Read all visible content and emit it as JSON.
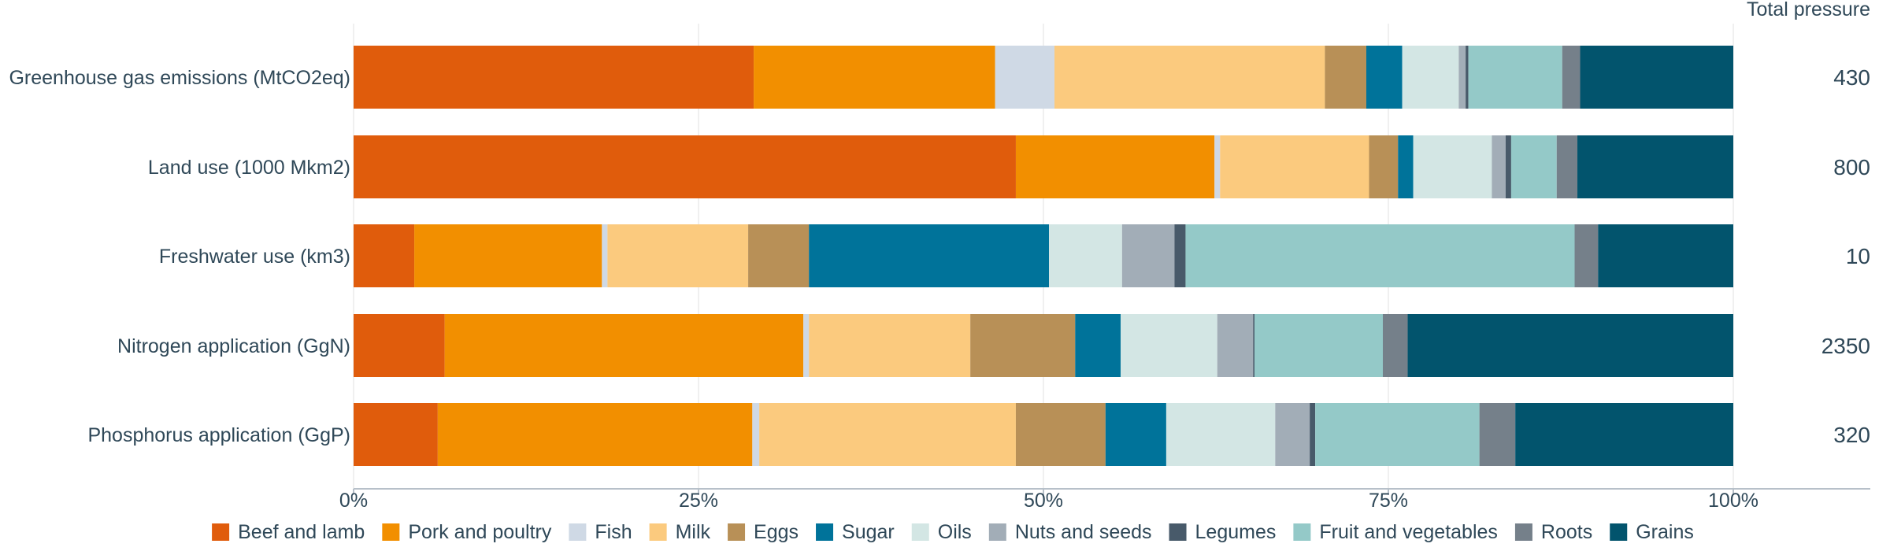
{
  "chart_data": {
    "type": "bar",
    "orientation": "horizontal",
    "stacked": "percent",
    "categories": [
      "Greenhouse gas emissions (MtCO2eq)",
      "Land use (1000 Mkm2)",
      "Freshwater use (km3)",
      "Nitrogen application (GgN)",
      "Phosphorus application (GgP)"
    ],
    "totals_header": "Total pressure",
    "totals": [
      "430",
      "800",
      "10",
      "2350",
      "320"
    ],
    "xlim": [
      0,
      100
    ],
    "xticks": [
      "0%",
      "25%",
      "50%",
      "75%",
      "100%"
    ],
    "grid": "vertical",
    "legend_position": "bottom",
    "series": [
      {
        "name": "Beef and lamb",
        "color": "#e05c0c",
        "values": [
          29.0,
          48.0,
          4.4,
          6.6,
          6.1
        ]
      },
      {
        "name": "Pork and poultry",
        "color": "#f28f00",
        "values": [
          17.5,
          14.4,
          13.6,
          26.0,
          22.8
        ]
      },
      {
        "name": "Fish",
        "color": "#cfd9e5",
        "values": [
          4.3,
          0.4,
          0.4,
          0.4,
          0.5
        ]
      },
      {
        "name": "Milk",
        "color": "#fbca7e",
        "values": [
          19.6,
          10.8,
          10.2,
          11.7,
          18.6
        ]
      },
      {
        "name": "Eggs",
        "color": "#b89057",
        "values": [
          3.0,
          2.1,
          4.4,
          7.6,
          6.5
        ]
      },
      {
        "name": "Sugar",
        "color": "#00739a",
        "values": [
          2.6,
          1.1,
          17.4,
          3.3,
          4.4
        ]
      },
      {
        "name": "Oils",
        "color": "#d3e6e4",
        "values": [
          4.1,
          5.7,
          5.3,
          7.0,
          7.9
        ]
      },
      {
        "name": "Nuts and seeds",
        "color": "#a2adb7",
        "values": [
          0.5,
          1.0,
          3.8,
          2.6,
          2.5
        ]
      },
      {
        "name": "Legumes",
        "color": "#485a6a",
        "values": [
          0.2,
          0.4,
          0.8,
          0.1,
          0.4
        ]
      },
      {
        "name": "Fruit and vegetables",
        "color": "#94c9c8",
        "values": [
          6.8,
          3.3,
          28.2,
          9.3,
          11.9
        ]
      },
      {
        "name": "Roots",
        "color": "#75808a",
        "values": [
          1.3,
          1.5,
          1.7,
          1.8,
          2.6
        ]
      },
      {
        "name": "Grains",
        "color": "#02546d",
        "values": [
          11.1,
          11.3,
          9.8,
          23.6,
          15.8
        ]
      }
    ]
  }
}
